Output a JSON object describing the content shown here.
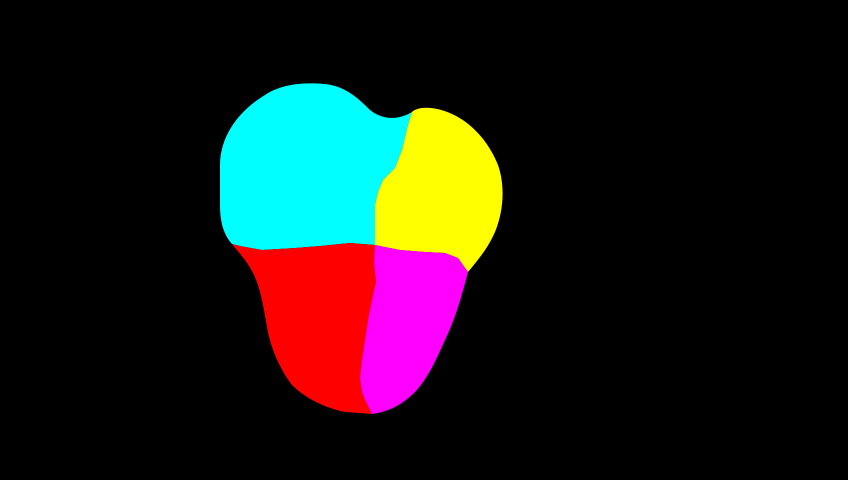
{
  "background_color": "#000000",
  "regions": [
    {
      "name": "upper-left",
      "color": "#00FFFF"
    },
    {
      "name": "upper-right",
      "color": "#FFFF00"
    },
    {
      "name": "lower-left",
      "color": "#FF0000"
    },
    {
      "name": "lower-right",
      "color": "#FF00FF"
    }
  ]
}
